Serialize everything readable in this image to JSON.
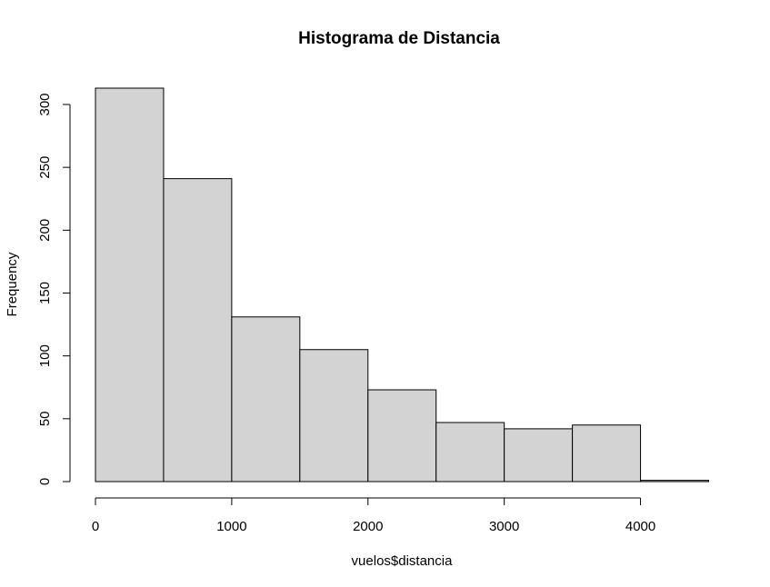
{
  "chart_data": {
    "type": "bar",
    "title": "Histograma de Distancia",
    "xlabel": "vuelos$distancia",
    "ylabel": "Frequency",
    "bins": [
      {
        "start": 0,
        "end": 500,
        "count": 313
      },
      {
        "start": 500,
        "end": 1000,
        "count": 241
      },
      {
        "start": 1000,
        "end": 1500,
        "count": 131
      },
      {
        "start": 1500,
        "end": 2000,
        "count": 105
      },
      {
        "start": 2000,
        "end": 2500,
        "count": 73
      },
      {
        "start": 2500,
        "end": 3000,
        "count": 47
      },
      {
        "start": 3000,
        "end": 3500,
        "count": 42
      },
      {
        "start": 3500,
        "end": 4000,
        "count": 45
      },
      {
        "start": 4000,
        "end": 4500,
        "count": 1
      }
    ],
    "xlim": [
      0,
      4500
    ],
    "ylim": [
      0,
      313
    ],
    "x_ticks": [
      0,
      1000,
      2000,
      3000,
      4000
    ],
    "y_ticks": [
      0,
      50,
      100,
      150,
      200,
      250,
      300
    ],
    "bar_color": "#d3d3d3",
    "grid": false
  }
}
